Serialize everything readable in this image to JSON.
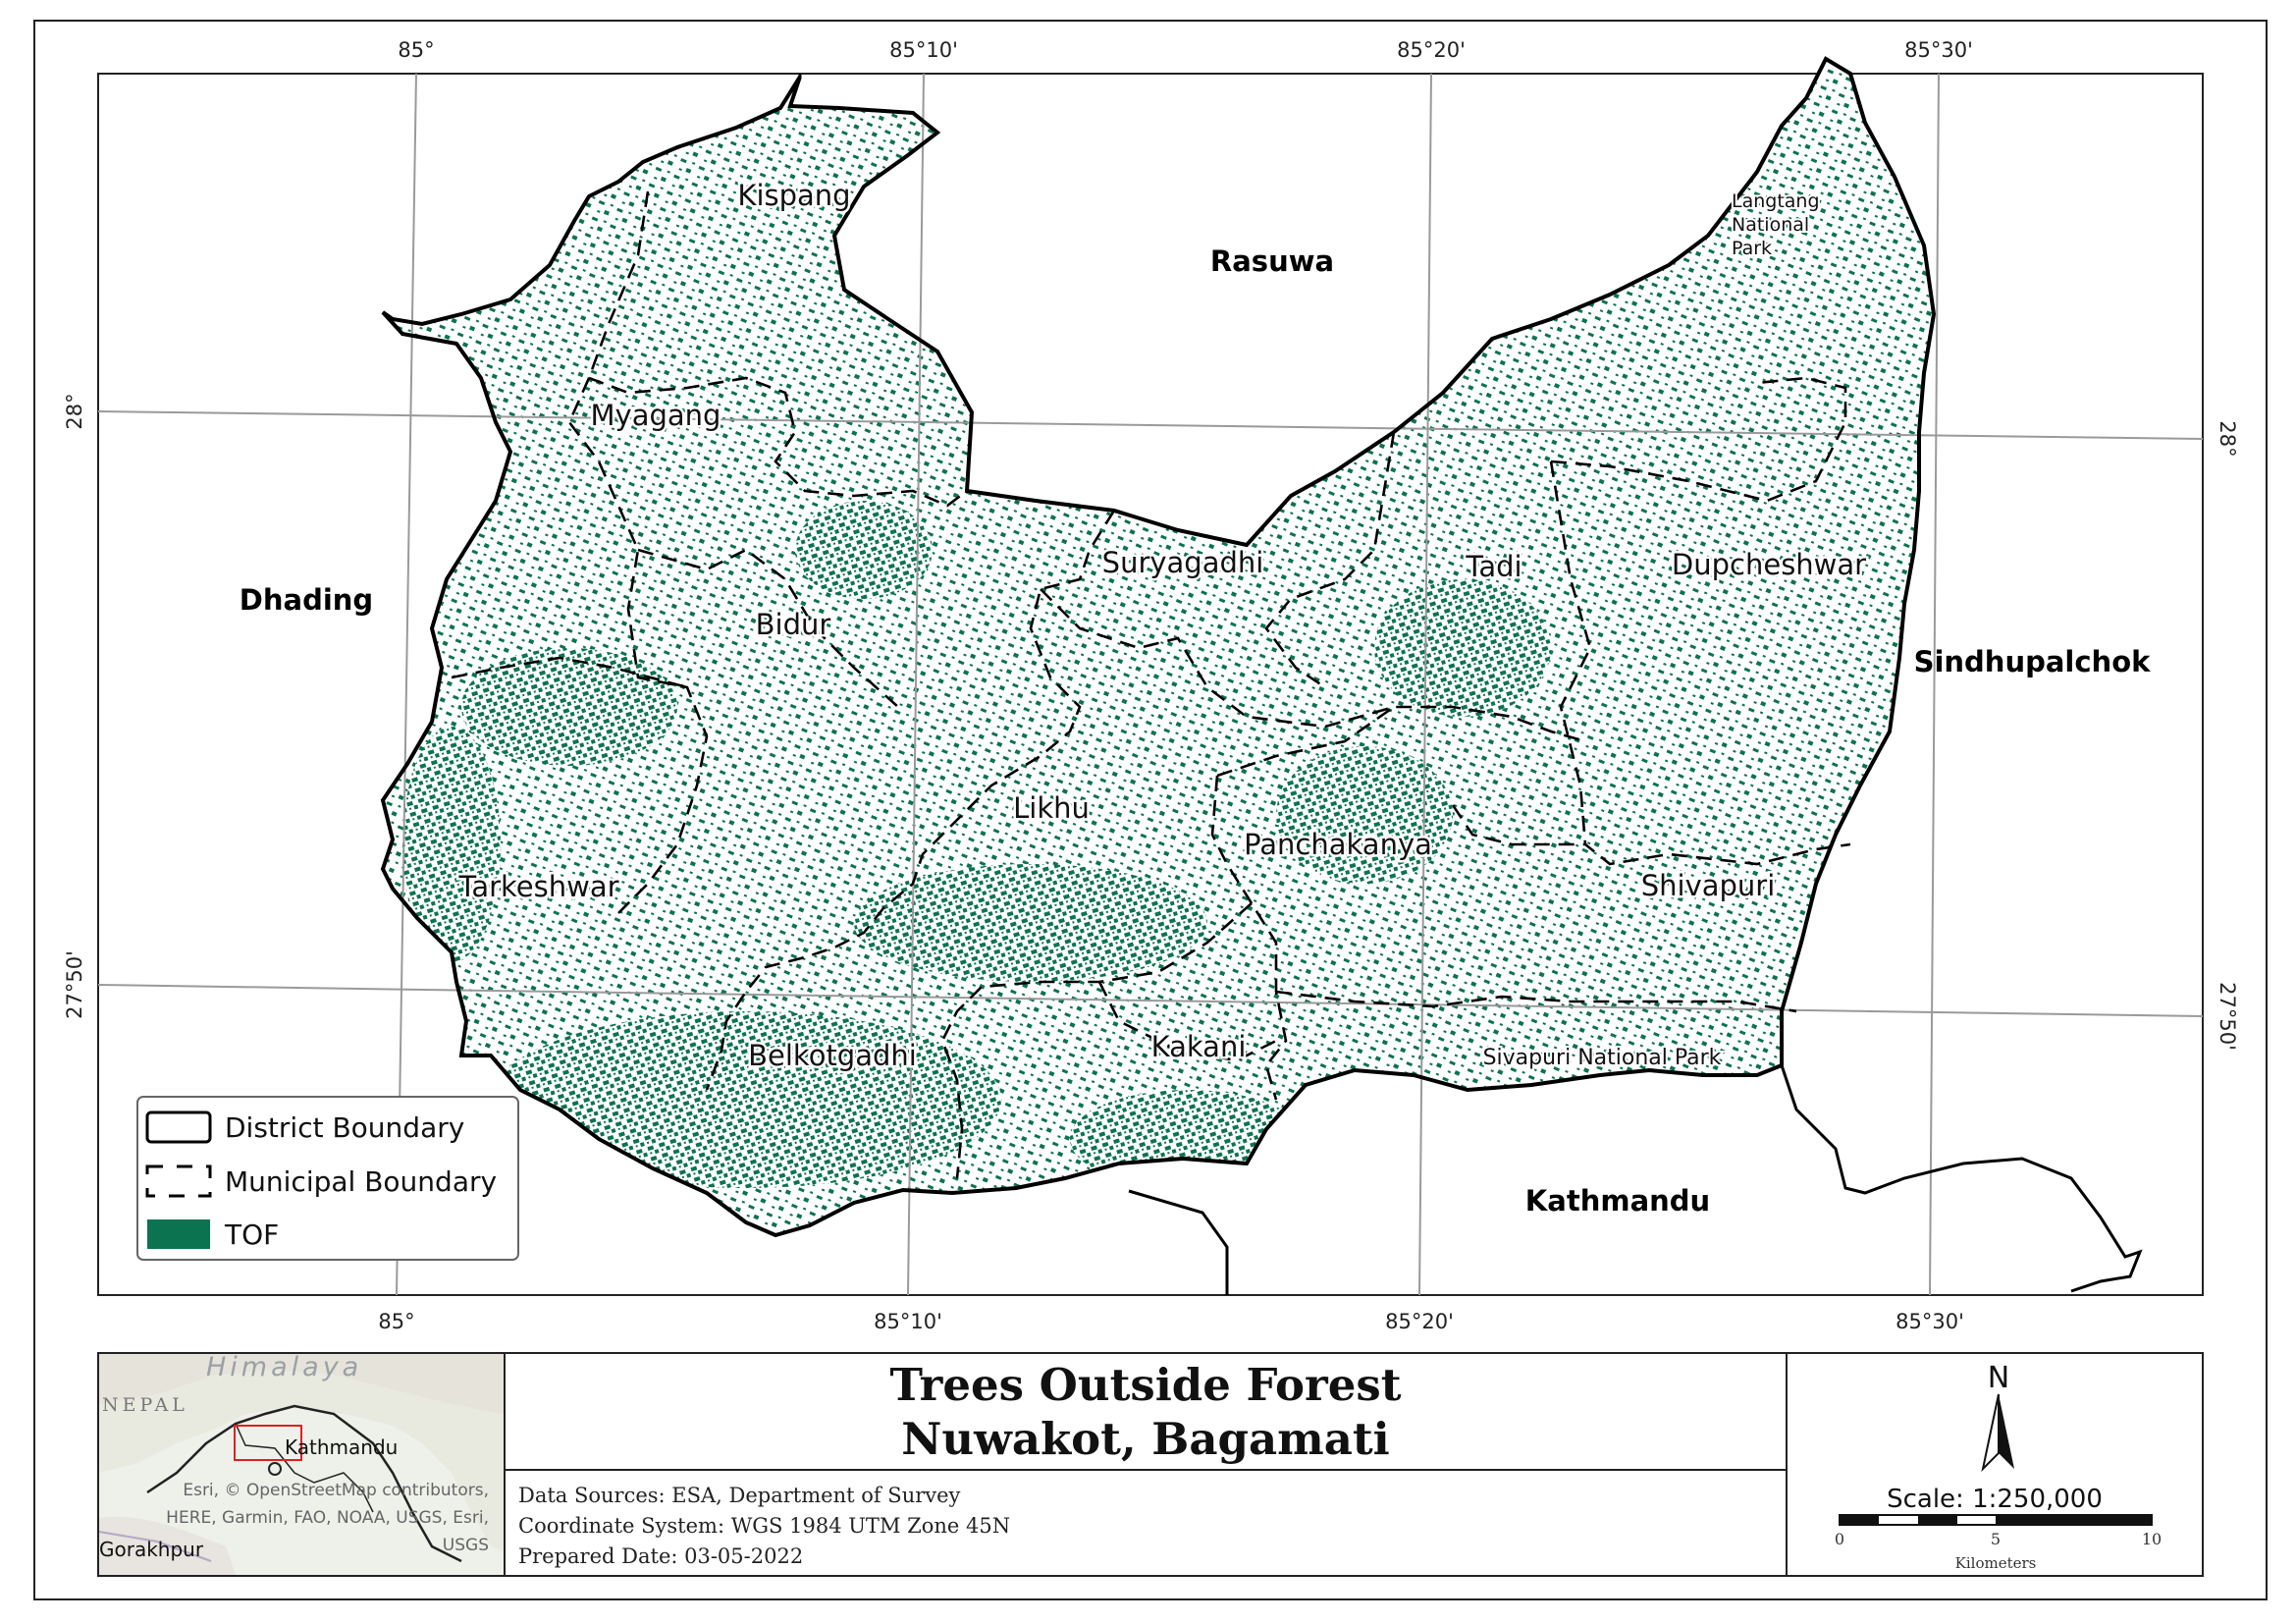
{
  "graticule": {
    "top": [
      "85°",
      "85°10'",
      "85°20'",
      "85°30'"
    ],
    "bottom": [
      "85°",
      "85°10'",
      "85°20'",
      "85°30'"
    ],
    "left": [
      "28°",
      "27°50'"
    ],
    "right": [
      "28°",
      "27°50'"
    ]
  },
  "districts": [
    "Rasuwa",
    "Dhading",
    "Sindhupalchok",
    "Kathmandu"
  ],
  "municipalities": [
    "Kispang",
    "Myagang",
    "Suryagadhi",
    "Tadi",
    "Dupcheshwar",
    "Bidur",
    "Likhu",
    "Panchakanya",
    "Tarkeshwar",
    "Shivapuri",
    "Belkotgadhi",
    "Kakani"
  ],
  "parks": {
    "langtang": [
      "Langtang",
      "National",
      "Park"
    ],
    "sivapuri": "Sivapuri National Park"
  },
  "legend": {
    "items": [
      "District Boundary",
      "Municipal Boundary",
      "TOF"
    ],
    "tof_color": "#0b7350"
  },
  "inset": {
    "himalaya": "Himalaya",
    "nepal": "NEPAL",
    "kathmandu": "Kathmandu",
    "gorakhpur": "Gorakhpur",
    "credit": [
      "Esri, © OpenStreetMap contributors,",
      "HERE, Garmin, FAO, NOAA, USGS, Esri,",
      "USGS"
    ]
  },
  "title": {
    "line1": "Trees Outside Forest",
    "line2": "Nuwakot, Bagamati"
  },
  "info": {
    "sources": "Data Sources: ESA, Department of Survey",
    "crs": "Coordinate System: WGS 1984 UTM Zone 45N",
    "date": "Prepared Date: 03-05-2022"
  },
  "north": "N",
  "scale": {
    "label": "Scale: 1:250,000",
    "ticks": [
      "0",
      "5",
      "10"
    ],
    "unit": "Kilometers"
  }
}
